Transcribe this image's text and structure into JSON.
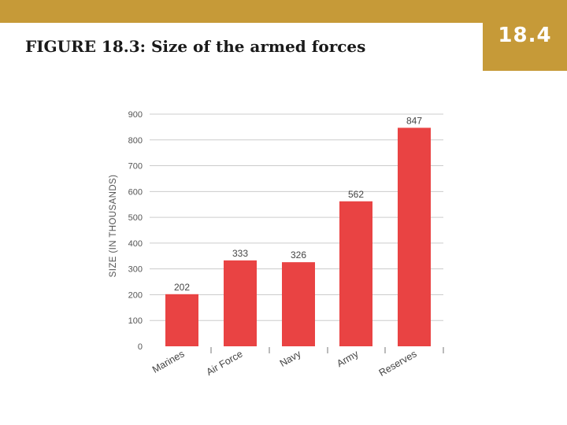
{
  "slide": {
    "title": "FIGURE 18.3: Size of the armed forces",
    "number": "18.4"
  },
  "colors": {
    "accent": "#c69a38",
    "bar": "#e94343",
    "grid": "#cccccc"
  },
  "chart_data": {
    "type": "bar",
    "categories": [
      "Marines",
      "Air Force",
      "Navy",
      "Army",
      "Reserves"
    ],
    "values": [
      202,
      333,
      326,
      562,
      847
    ],
    "title": "",
    "xlabel": "",
    "ylabel": "SIZE (IN THOUSANDS)",
    "ylim": [
      0,
      900
    ],
    "yticks": [
      0,
      100,
      200,
      300,
      400,
      500,
      600,
      700,
      800,
      900
    ],
    "grid": true,
    "legend": "none"
  }
}
